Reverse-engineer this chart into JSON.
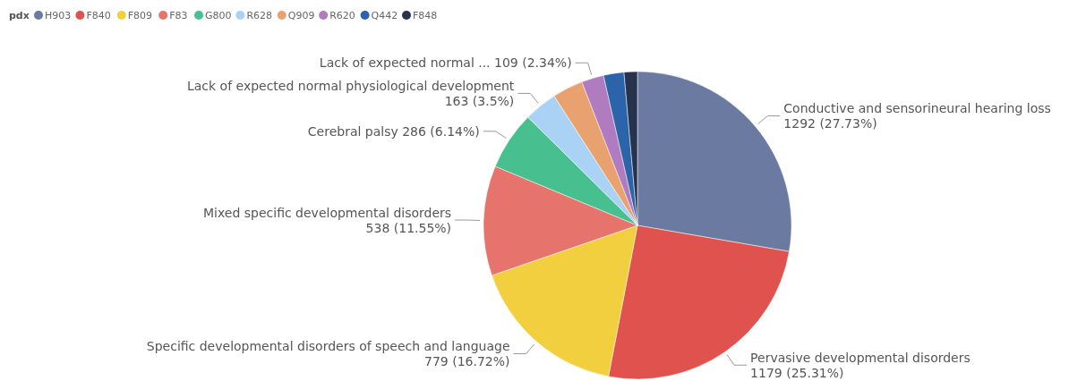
{
  "chart_data": {
    "type": "pie",
    "legend_title": "pdx",
    "legend": "top left",
    "categories": [
      "H903",
      "F840",
      "F809",
      "F83",
      "G800",
      "R628",
      "Q909",
      "R620",
      "Q442",
      "F848"
    ],
    "values": [
      1292,
      1179,
      779,
      538,
      286,
      163,
      150,
      109,
      100,
      65
    ],
    "colors": [
      "#6b7aa1",
      "#e0524e",
      "#f2cf3e",
      "#e6736c",
      "#47bf8f",
      "#a9d2f5",
      "#e9a26f",
      "#b07cbf",
      "#2b64a8",
      "#27324f"
    ],
    "value_labels": [
      "Conductive and sensorineural hearing loss\n1292 (27.73%)",
      "Pervasive developmental disorders\n1179 (25.31%)",
      "Specific developmental disorders of speech and language\n779 (16.72%)",
      "Mixed specific developmental disorders\n538 (11.55%)",
      "Cerebral palsy 286 (6.14%)",
      "Lack of expected normal physiological development\n163 (3.5%)",
      null,
      "Lack of expected normal ... 109 (2.34%)",
      null,
      null
    ]
  }
}
